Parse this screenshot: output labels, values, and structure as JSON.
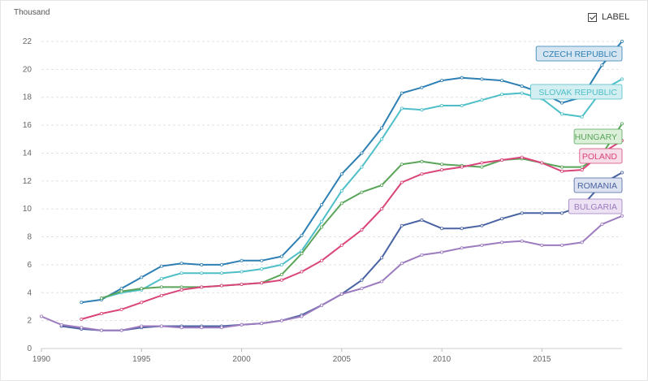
{
  "header": {
    "unit_label": "Thousand",
    "label_toggle": "LABEL",
    "label_checked": true
  },
  "chart_data": {
    "type": "line",
    "title": "",
    "xlabel": "",
    "ylabel": "Thousand",
    "xlim": [
      1990,
      2019
    ],
    "ylim": [
      0,
      22
    ],
    "x_ticks": [
      1990,
      1995,
      2000,
      2005,
      2010,
      2015
    ],
    "y_ticks": [
      0,
      2,
      4,
      6,
      8,
      10,
      12,
      14,
      16,
      18,
      20,
      22
    ],
    "grid": true,
    "end_labels": true,
    "series": [
      {
        "name": "CZECH REPUBLIC",
        "color": "#2e7fb3",
        "label_bg": "#d5e6f2",
        "x": [
          1992,
          1993,
          1994,
          1995,
          1996,
          1997,
          1998,
          1999,
          2000,
          2001,
          2002,
          2003,
          2004,
          2005,
          2006,
          2007,
          2008,
          2009,
          2010,
          2011,
          2012,
          2013,
          2014,
          2015,
          2016,
          2017,
          2018,
          2019
        ],
        "y": [
          3.3,
          3.5,
          4.3,
          5.1,
          5.9,
          6.1,
          6.0,
          6.0,
          6.3,
          6.3,
          6.6,
          8.1,
          10.3,
          12.5,
          14.0,
          15.8,
          18.3,
          18.7,
          19.2,
          19.4,
          19.3,
          19.2,
          18.8,
          18.3,
          17.6,
          18.0,
          20.3,
          22.0
        ]
      },
      {
        "name": "SLOVAK REPUBLIC",
        "color": "#4ebfc8",
        "label_bg": "#d3eff1",
        "x": [
          1993,
          1994,
          1995,
          1996,
          1997,
          1998,
          1999,
          2000,
          2001,
          2002,
          2003,
          2004,
          2005,
          2006,
          2007,
          2008,
          2009,
          2010,
          2011,
          2012,
          2013,
          2014,
          2015,
          2016,
          2017,
          2018,
          2019
        ],
        "y": [
          3.6,
          4.0,
          4.2,
          5.0,
          5.4,
          5.4,
          5.4,
          5.5,
          5.7,
          6.0,
          7.0,
          9.1,
          11.3,
          13.0,
          15.0,
          17.2,
          17.1,
          17.4,
          17.4,
          17.8,
          18.2,
          18.3,
          17.9,
          16.8,
          16.6,
          18.5,
          19.3
        ]
      },
      {
        "name": "HUNGARY",
        "color": "#5aa55a",
        "label_bg": "#dcefd9",
        "x": [
          1993,
          1994,
          1995,
          1996,
          1997,
          1998,
          1999,
          2000,
          2001,
          2002,
          2003,
          2004,
          2005,
          2006,
          2007,
          2008,
          2009,
          2010,
          2011,
          2012,
          2013,
          2014,
          2015,
          2016,
          2017,
          2018,
          2019
        ],
        "y": [
          3.6,
          4.1,
          4.3,
          4.4,
          4.4,
          4.4,
          4.5,
          4.6,
          4.7,
          5.3,
          6.8,
          8.7,
          10.4,
          11.2,
          11.7,
          13.2,
          13.4,
          13.2,
          13.1,
          13.0,
          13.5,
          13.6,
          13.3,
          13.0,
          13.0,
          13.9,
          16.1
        ]
      },
      {
        "name": "POLAND",
        "color": "#d9457a",
        "label_bg": "#f7dde7",
        "x": [
          1992,
          1993,
          1994,
          1995,
          1996,
          1997,
          1998,
          1999,
          2000,
          2001,
          2002,
          2003,
          2004,
          2005,
          2006,
          2007,
          2008,
          2009,
          2010,
          2011,
          2012,
          2013,
          2014,
          2015,
          2016,
          2017,
          2018,
          2019
        ],
        "y": [
          2.1,
          2.5,
          2.8,
          3.3,
          3.8,
          4.2,
          4.4,
          4.5,
          4.6,
          4.7,
          4.9,
          5.5,
          6.3,
          7.4,
          8.5,
          10.0,
          11.9,
          12.5,
          12.8,
          13.0,
          13.3,
          13.5,
          13.7,
          13.3,
          12.7,
          12.8,
          14.0,
          14.9
        ]
      },
      {
        "name": "ROMANIA",
        "color": "#4a63a3",
        "label_bg": "#dde2f0",
        "x": [
          1991,
          1992,
          1993,
          1994,
          1995,
          1996,
          1997,
          1998,
          1999,
          2000,
          2001,
          2002,
          2003,
          2004,
          2005,
          2006,
          2007,
          2008,
          2009,
          2010,
          2011,
          2012,
          2013,
          2014,
          2015,
          2016,
          2017,
          2018,
          2019
        ],
        "y": [
          1.6,
          1.4,
          1.3,
          1.3,
          1.5,
          1.6,
          1.6,
          1.6,
          1.6,
          1.7,
          1.8,
          2.0,
          2.4,
          3.1,
          3.9,
          4.9,
          6.5,
          8.8,
          9.2,
          8.6,
          8.6,
          8.8,
          9.3,
          9.7,
          9.7,
          9.7,
          10.2,
          11.8,
          12.6
        ]
      },
      {
        "name": "BULGARIA",
        "color": "#9c7bbf",
        "label_bg": "#ece2f4",
        "x": [
          1990,
          1991,
          1992,
          1993,
          1994,
          1995,
          1996,
          1997,
          1998,
          1999,
          2000,
          2001,
          2002,
          2003,
          2004,
          2005,
          2006,
          2007,
          2008,
          2009,
          2010,
          2011,
          2012,
          2013,
          2014,
          2015,
          2016,
          2017,
          2018,
          2019
        ],
        "y": [
          2.3,
          1.7,
          1.5,
          1.3,
          1.3,
          1.6,
          1.6,
          1.5,
          1.5,
          1.5,
          1.7,
          1.8,
          2.0,
          2.3,
          3.1,
          3.9,
          4.3,
          4.8,
          6.1,
          6.7,
          6.9,
          7.2,
          7.4,
          7.6,
          7.7,
          7.4,
          7.4,
          7.6,
          8.9,
          9.5
        ]
      }
    ]
  }
}
